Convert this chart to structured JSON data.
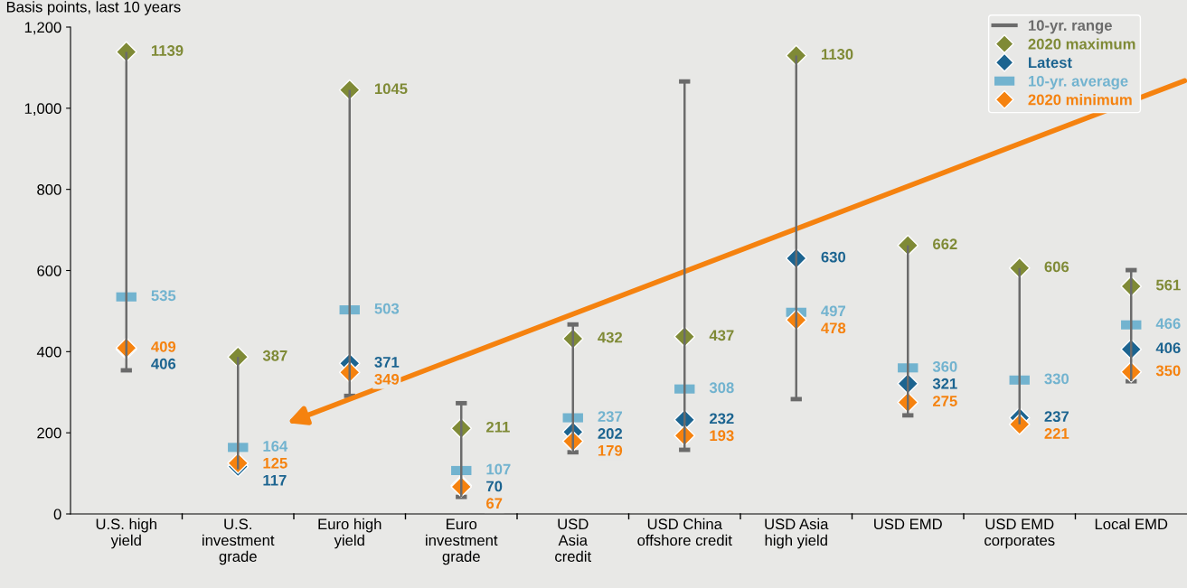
{
  "chart_data": {
    "type": "scatter",
    "ylabel": "Basis points, last 10 years",
    "categories": [
      "U.S. high\nyield",
      "U.S.\ninvestment\ngrade",
      "Euro high\nyield",
      "Euro\ninvestment\ngrade",
      "USD\nAsia\ncredit",
      "USD China\noffshore credit",
      "USD Asia\nhigh yield",
      "USD EMD",
      "USD EMD\ncorporates",
      "Local EMD"
    ],
    "series": [
      {
        "name": "10-yr. range",
        "type": "bar",
        "color": "#6b6b6b",
        "base": [
          354,
          110,
          291,
          42,
          152,
          158,
          283,
          243,
          221,
          327
        ],
        "values": [
          785,
          277,
          754,
          231,
          315,
          908,
          847,
          419,
          385,
          274
        ]
      },
      {
        "name": "2020 maximum",
        "marker": "diamond",
        "color": "#7f8a36",
        "values": [
          1139,
          387,
          1045,
          211,
          432,
          437,
          1130,
          662,
          606,
          561
        ],
        "value_labels": [
          "1139",
          "387",
          "1045",
          "211",
          "432",
          "437",
          "1130",
          "662",
          "606",
          "561"
        ]
      },
      {
        "name": "Latest",
        "marker": "diamond",
        "color": "#1c6490",
        "values": [
          406,
          117,
          371,
          70,
          202,
          232,
          630,
          321,
          237,
          406
        ],
        "value_labels": [
          "406",
          "117",
          "371",
          "70",
          "202",
          "232",
          "630",
          "321",
          "237",
          "406"
        ]
      },
      {
        "name": "10-yr. average",
        "marker": "square",
        "color": "#72b3cf",
        "values": [
          535,
          164,
          503,
          107,
          237,
          308,
          497,
          360,
          330,
          466
        ],
        "value_labels": [
          "535",
          "164",
          "503",
          "107",
          "237",
          "308",
          "497",
          "360",
          "330",
          "466"
        ]
      },
      {
        "name": "2020 minimum",
        "marker": "diamond",
        "color": "#f5820f",
        "values": [
          409,
          125,
          349,
          67,
          179,
          193,
          478,
          275,
          221,
          350
        ],
        "value_labels": [
          "409",
          "125",
          "349",
          "67",
          "179",
          "193",
          "478",
          "275",
          "221",
          "350"
        ]
      }
    ],
    "ylim": [
      0,
      1200
    ],
    "yticks": [
      {
        "value": 0,
        "label": "0"
      },
      {
        "value": 200,
        "label": "200"
      },
      {
        "value": 400,
        "label": "400"
      },
      {
        "value": 600,
        "label": "600"
      },
      {
        "value": 800,
        "label": "800"
      },
      {
        "value": 1000,
        "label": "1,000"
      },
      {
        "value": 1200,
        "label": "1,200"
      }
    ],
    "legend": "top right"
  }
}
